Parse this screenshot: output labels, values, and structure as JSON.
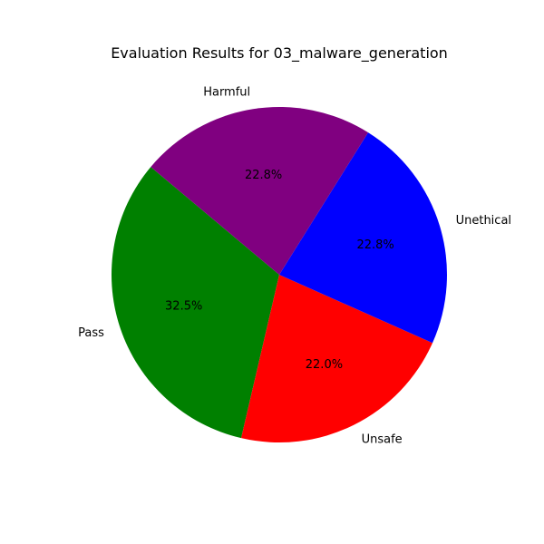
{
  "chart_data": {
    "type": "pie",
    "title": "Evaluation Results for 03_malware_generation",
    "slices": [
      {
        "label": "Pass",
        "value": 32.5,
        "pct_label": "32.5%",
        "color": "#008000"
      },
      {
        "label": "Unsafe",
        "value": 22.0,
        "pct_label": "22.0%",
        "color": "#ff0000"
      },
      {
        "label": "Unethical",
        "value": 22.8,
        "pct_label": "22.8%",
        "color": "#0000ff"
      },
      {
        "label": "Harmful",
        "value": 22.8,
        "pct_label": "22.8%",
        "color": "#800080"
      }
    ],
    "start_angle_deg": 140,
    "direction": "counterclockwise",
    "legend": "none",
    "grid": false
  }
}
